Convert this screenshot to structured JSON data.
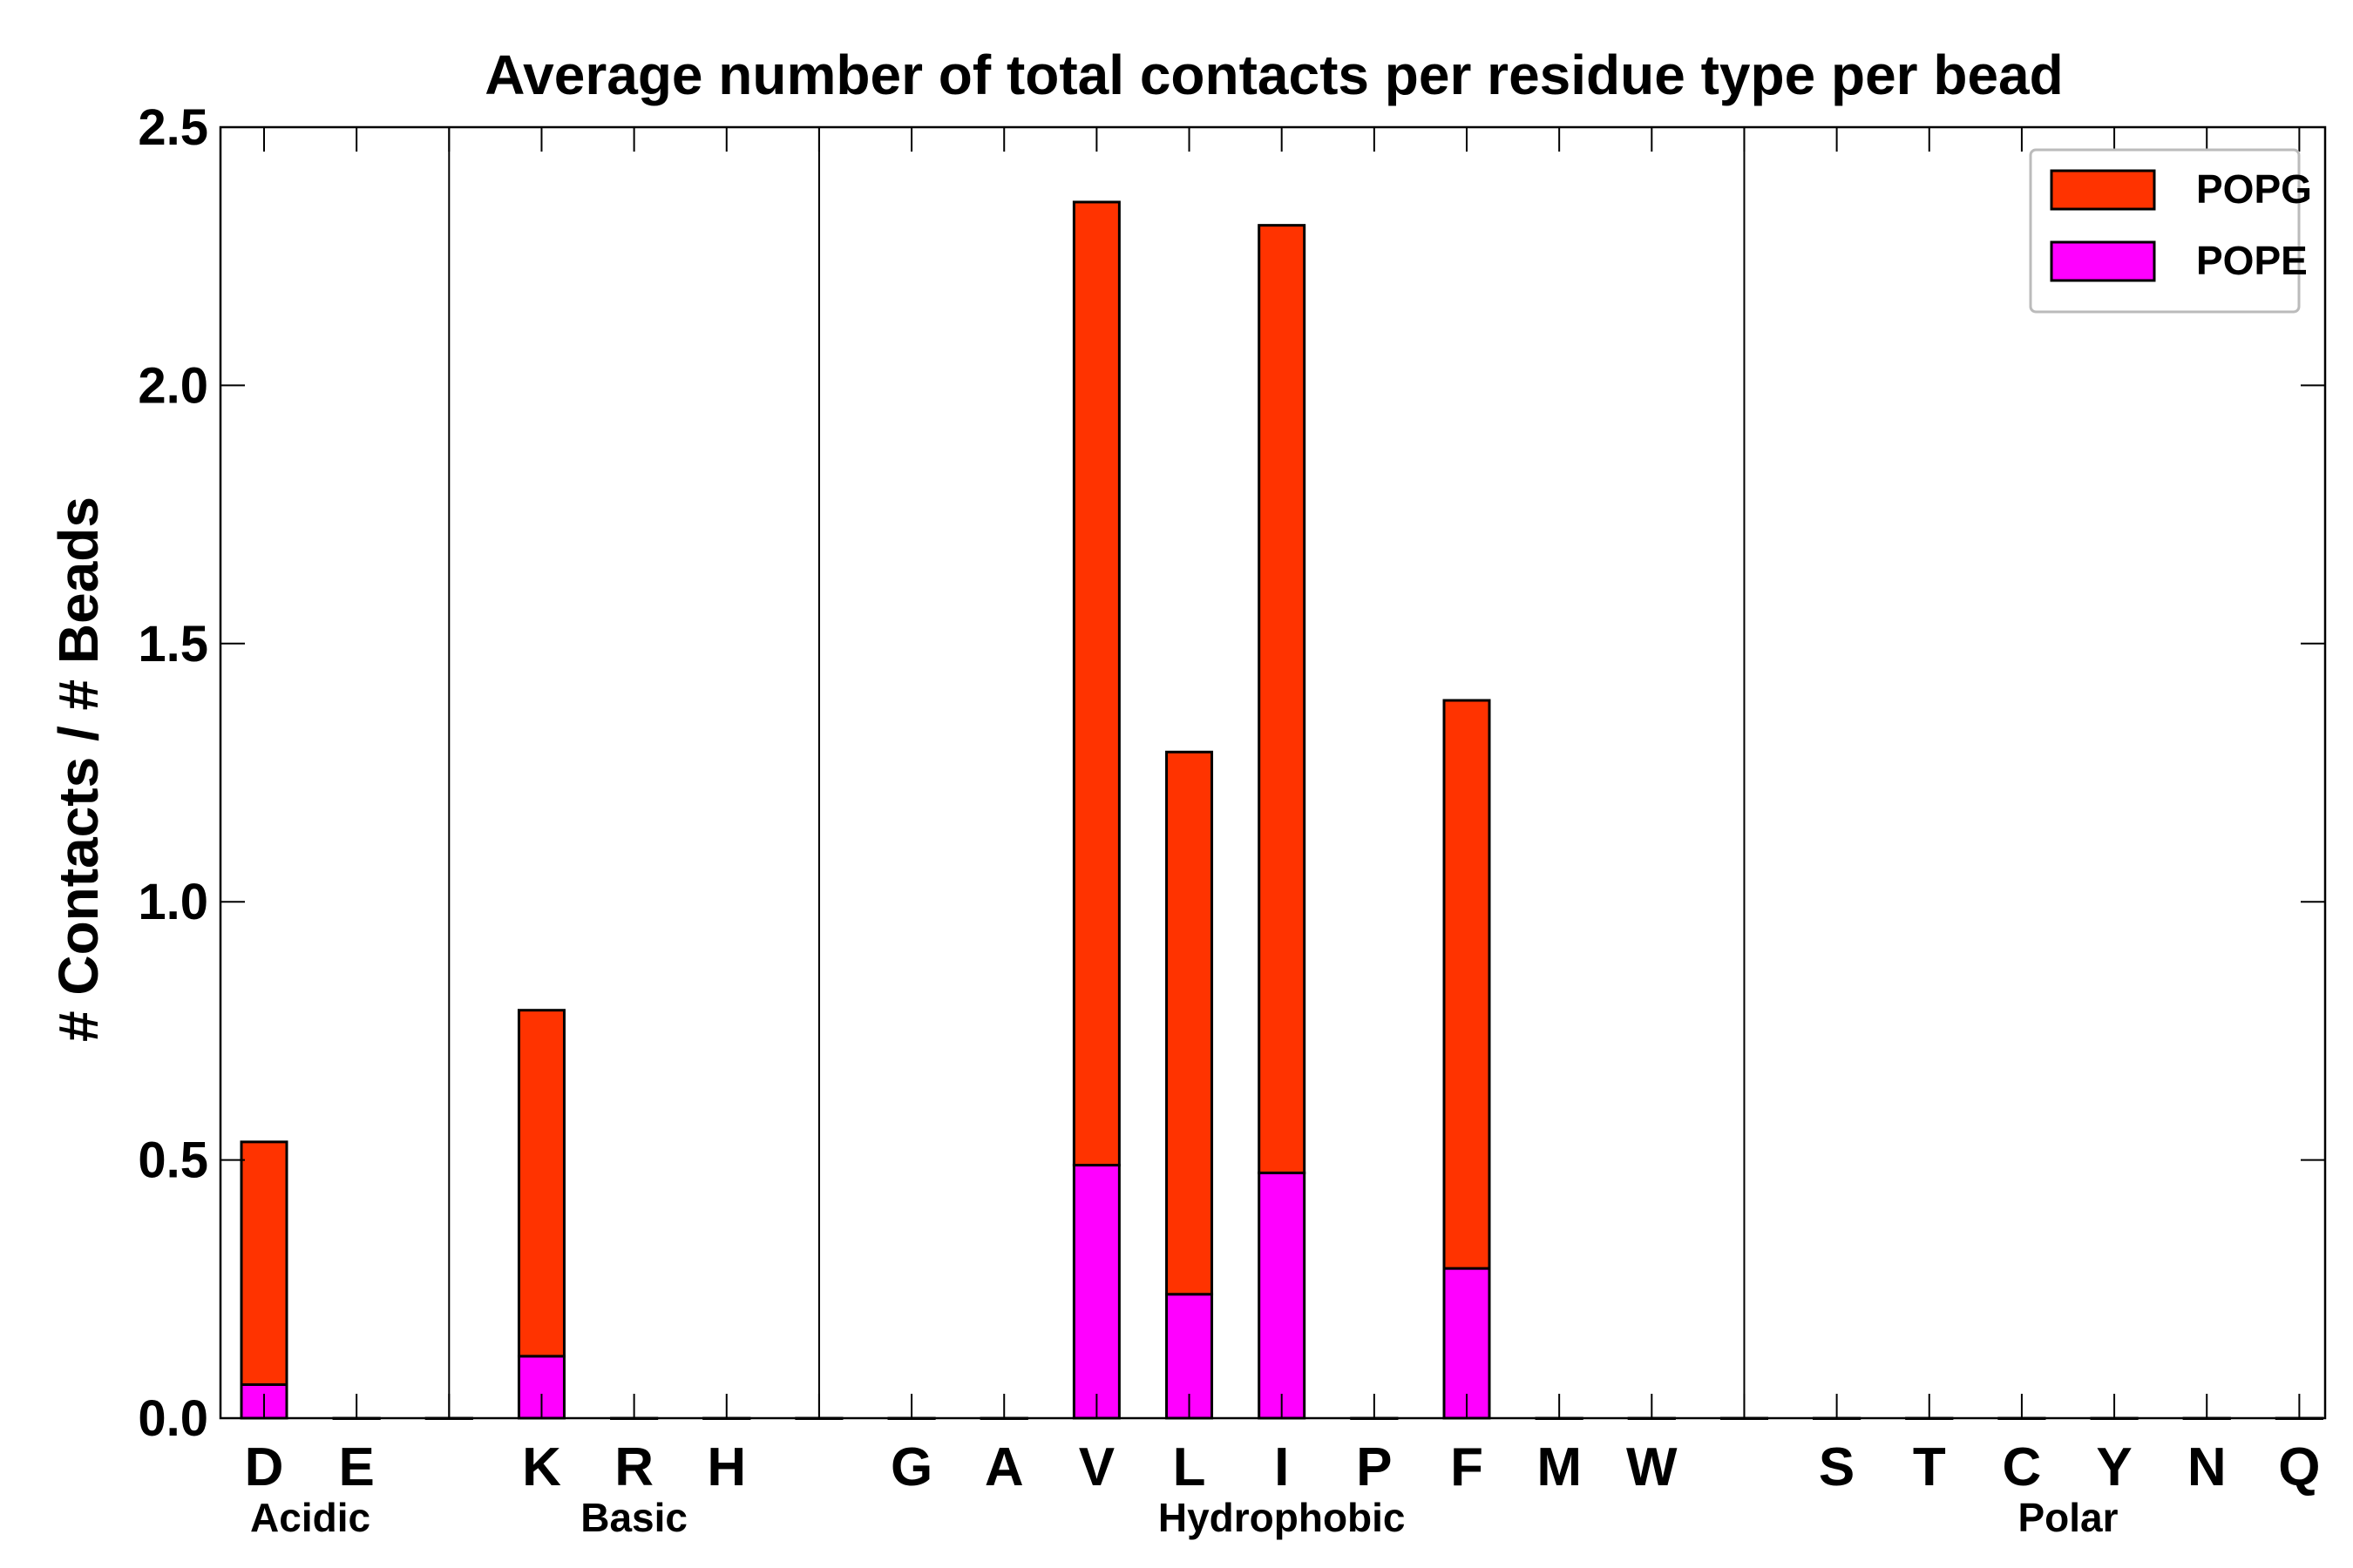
{
  "chart_data": {
    "type": "bar",
    "stacked": true,
    "title": "Average number of total contacts per residue type per bead",
    "xlabel": "",
    "ylabel": "# Contacts / # Beads",
    "ylim": [
      0,
      2.5
    ],
    "yticks": [
      0.0,
      0.5,
      1.0,
      1.5,
      2.0,
      2.5
    ],
    "ytick_labels": [
      "0.0",
      "0.5",
      "1.0",
      "1.5",
      "2.0",
      "2.5"
    ],
    "grid": false,
    "legend_position": "top-right",
    "categories": [
      "D",
      "E",
      "",
      "K",
      "R",
      "H",
      "",
      "G",
      "A",
      "V",
      "L",
      "I",
      "P",
      "F",
      "M",
      "W",
      "",
      "S",
      "T",
      "C",
      "Y",
      "N",
      "Q"
    ],
    "groups": [
      {
        "label": "Acidic",
        "members": [
          "D",
          "E"
        ]
      },
      {
        "label": "Basic",
        "members": [
          "K",
          "R",
          "H"
        ]
      },
      {
        "label": "Hydrophobic",
        "members": [
          "G",
          "A",
          "V",
          "L",
          "I",
          "P",
          "F",
          "M",
          "W"
        ]
      },
      {
        "label": "Polar",
        "members": [
          "S",
          "T",
          "C",
          "Y",
          "N",
          "Q"
        ]
      }
    ],
    "series": [
      {
        "name": "POPE",
        "color": "#ff00ff",
        "values": [
          0.065,
          0,
          0,
          0.12,
          0,
          0,
          0,
          0,
          0,
          0.49,
          0.24,
          0.475,
          0,
          0.29,
          0,
          0,
          0,
          0,
          0,
          0,
          0,
          0,
          0
        ]
      },
      {
        "name": "POPG",
        "color": "#ff3300",
        "values": [
          0.47,
          0,
          0,
          0.67,
          0,
          0,
          0,
          0,
          0,
          1.865,
          1.05,
          1.835,
          0,
          1.1,
          0,
          0,
          0,
          0,
          0,
          0,
          0,
          0,
          0
        ]
      }
    ],
    "legend_order": [
      "POPG",
      "POPE"
    ]
  }
}
